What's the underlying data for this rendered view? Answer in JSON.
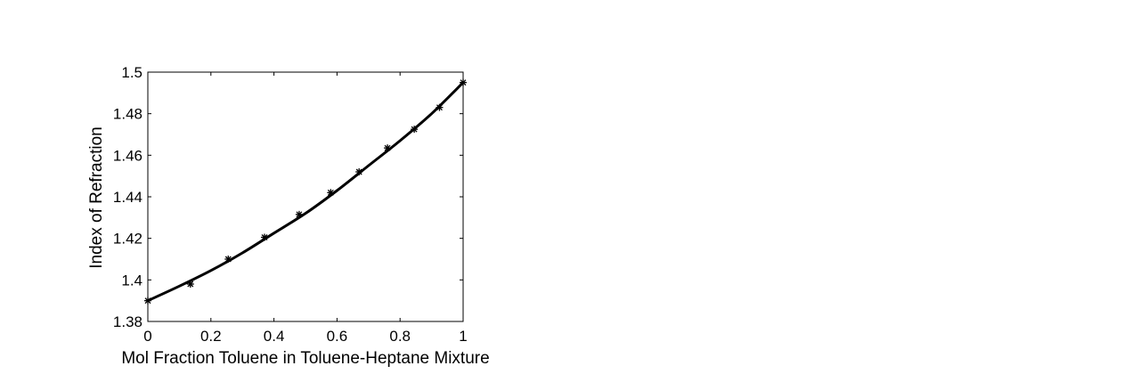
{
  "chart_data": {
    "type": "scatter",
    "xlabel": "Mol Fraction Toluene in Toluene-Heptane Mixture",
    "ylabel": "Index of Refraction",
    "xlim": [
      0,
      1
    ],
    "ylim": [
      1.38,
      1.5
    ],
    "x_ticks": [
      0,
      0.2,
      0.4,
      0.6,
      0.8,
      1
    ],
    "x_tick_labels": [
      "0",
      "0.2",
      "0.4",
      "0.6",
      "0.8",
      "1"
    ],
    "y_ticks": [
      1.38,
      1.4,
      1.42,
      1.44,
      1.46,
      1.48,
      1.5
    ],
    "y_tick_labels": [
      "1.38",
      "1.4",
      "1.42",
      "1.44",
      "1.46",
      "1.48",
      "1.5"
    ],
    "grid": false,
    "series": [
      {
        "kind": "markers",
        "marker": "asterisk",
        "x": [
          0,
          0.135,
          0.255,
          0.37,
          0.48,
          0.58,
          0.67,
          0.76,
          0.845,
          0.925,
          1.0
        ],
        "y": [
          1.39,
          1.398,
          1.41,
          1.4205,
          1.4315,
          1.442,
          1.452,
          1.4635,
          1.4725,
          1.483,
          1.495
        ]
      },
      {
        "kind": "fit-line",
        "x": [
          0,
          0.1,
          0.2,
          0.3,
          0.4,
          0.5,
          0.6,
          0.7,
          0.8,
          0.9,
          1.0
        ],
        "y": [
          1.39,
          1.397,
          1.4045,
          1.413,
          1.4225,
          1.432,
          1.443,
          1.455,
          1.467,
          1.48,
          1.495
        ]
      }
    ],
    "colors": {
      "line": "#000000",
      "markers": "#000000",
      "axes": "#000000",
      "background": "#ffffff"
    }
  }
}
